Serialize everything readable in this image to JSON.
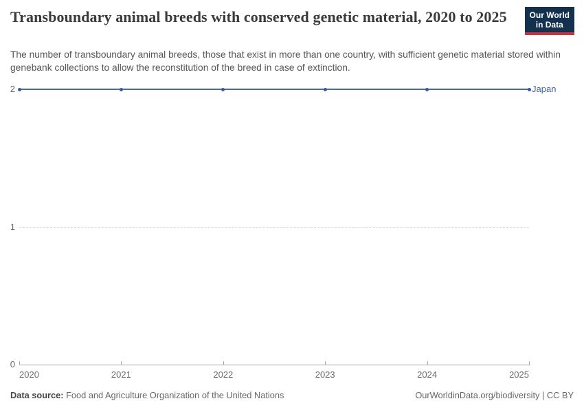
{
  "header": {
    "title": "Transboundary animal breeds with conserved genetic material, 2020 to 2025",
    "subtitle": "The number of transboundary animal breeds, those that exist in more than one country, with sufficient genetic material stored within genebank collections to allow the reconstitution of the breed in case of extinction.",
    "logo": {
      "line1": "Our World",
      "line2": "in Data",
      "bg_color": "#14304f",
      "accent_color": "#cf303a"
    }
  },
  "chart_data": {
    "type": "line",
    "x": [
      2020,
      2021,
      2022,
      2023,
      2024,
      2025
    ],
    "series": [
      {
        "name": "Japan",
        "values": [
          2,
          2,
          2,
          2,
          2,
          2
        ],
        "color": "#4a69a8",
        "marker_color": "#39589c",
        "label_color": "#3f64a4"
      }
    ],
    "title": "Transboundary animal breeds with conserved genetic material, 2020 to 2025",
    "xlabel": "",
    "ylabel": "",
    "ylim": [
      0,
      2
    ],
    "yticks": [
      0,
      1,
      2
    ],
    "xticks": [
      2020,
      2021,
      2022,
      2023,
      2024,
      2025
    ],
    "grid": "horizontal-dashed",
    "legend_position": "end-of-line"
  },
  "footer": {
    "source_label": "Data source:",
    "source_text": "Food and Agriculture Organization of the United Nations",
    "attribution": "OurWorldinData.org/biodiversity | CC BY"
  }
}
